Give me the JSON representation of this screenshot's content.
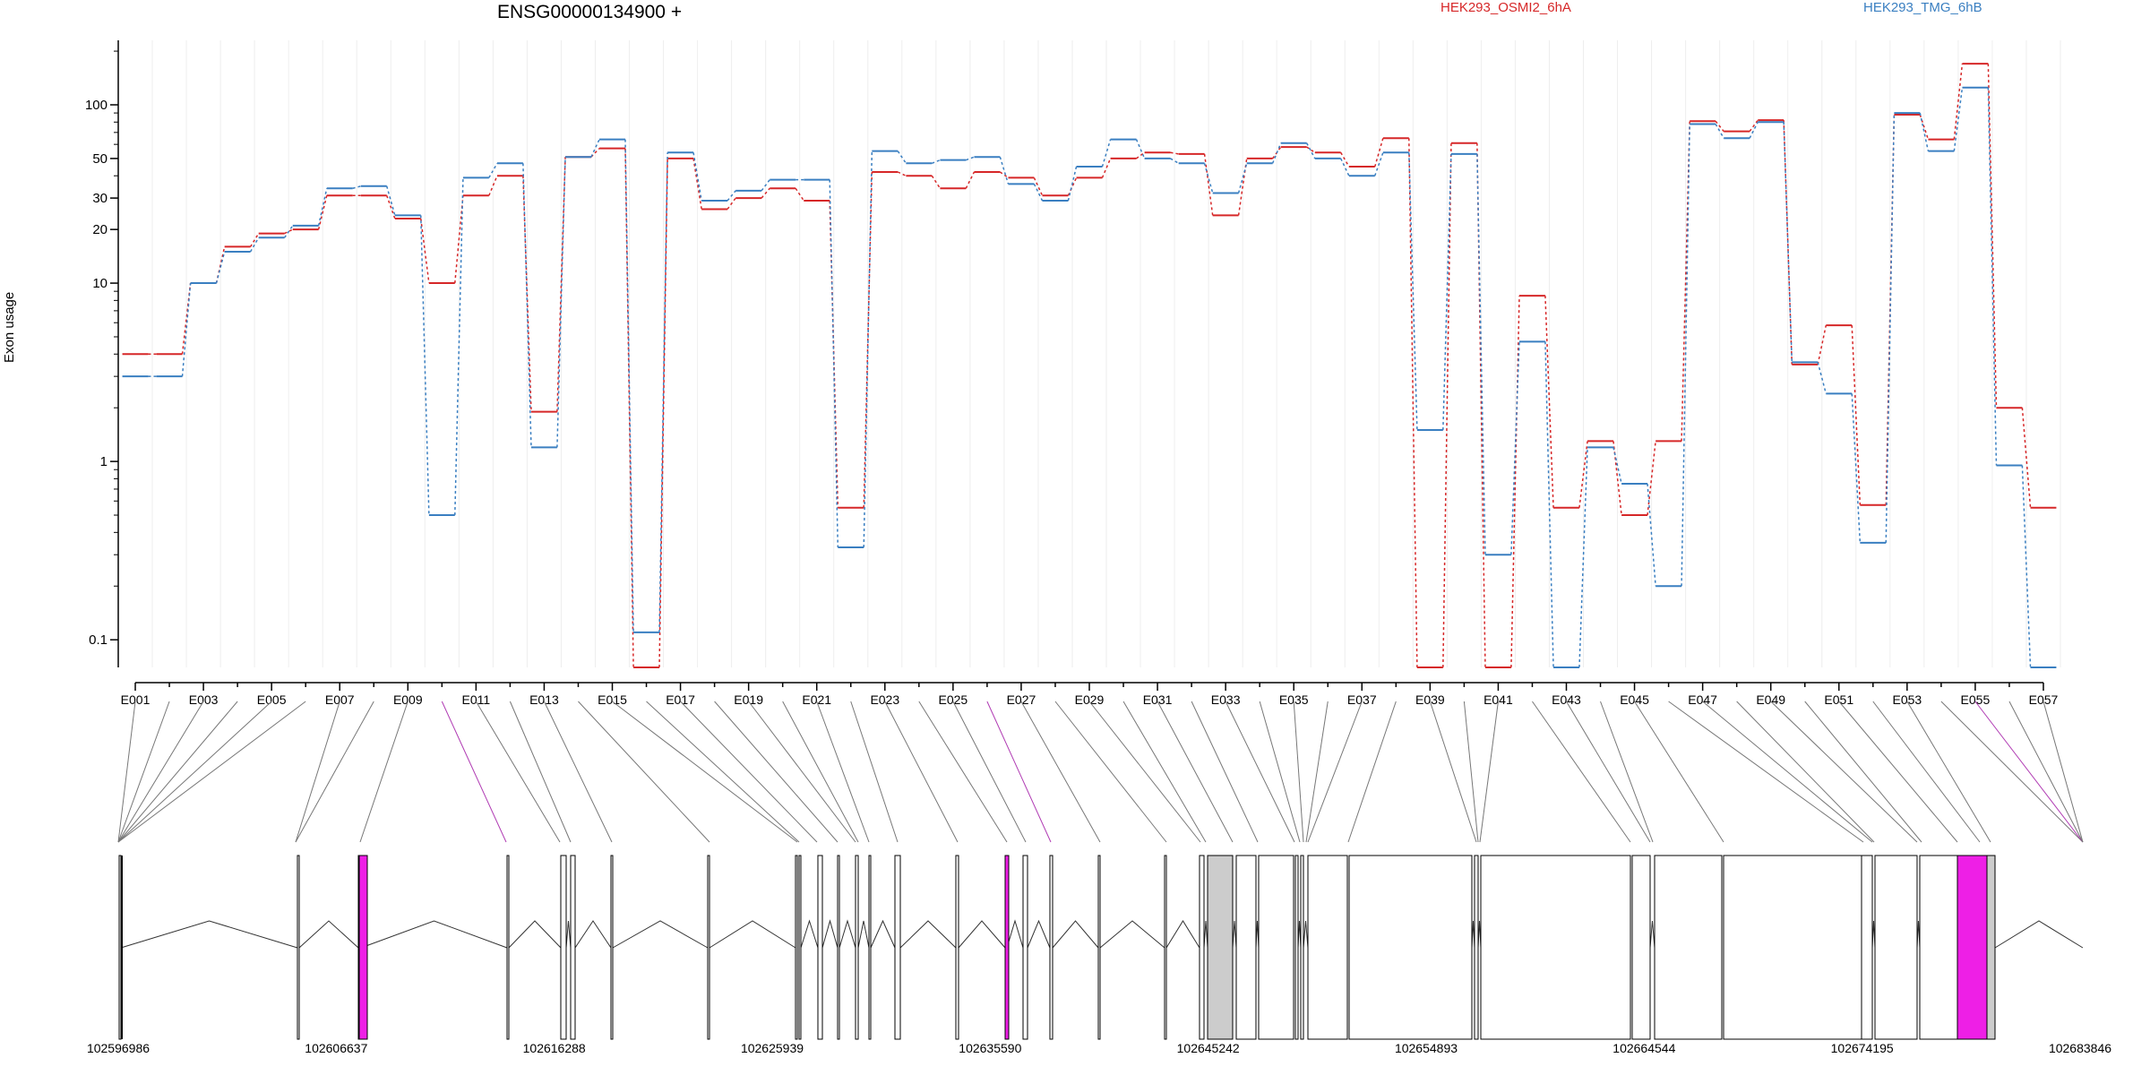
{
  "chart_data": {
    "type": "line",
    "title": "ENSG00000134900 +",
    "ylabel": "Exon usage",
    "yscale": "log",
    "ylim": [
      0.07,
      230
    ],
    "yticks": [
      0.1,
      1,
      10,
      20,
      30,
      50,
      100
    ],
    "yticklabels": [
      "0.1",
      "1",
      "10",
      "20",
      "30",
      "50",
      "100"
    ],
    "grid": "vertical",
    "legend_position": "top",
    "categories": [
      "E001",
      "E002",
      "E003",
      "E004",
      "E005",
      "E006",
      "E007",
      "E008",
      "E009",
      "E010",
      "E011",
      "E012",
      "E013",
      "E014",
      "E015",
      "E016",
      "E017",
      "E018",
      "E019",
      "E020",
      "E021",
      "E022",
      "E023",
      "E024",
      "E025",
      "E026",
      "E027",
      "E028",
      "E029",
      "E030",
      "E031",
      "E032",
      "E033",
      "E034",
      "E035",
      "E036",
      "E037",
      "E038",
      "E039",
      "E040",
      "E041",
      "E042",
      "E043",
      "E044",
      "E045",
      "E046",
      "E047",
      "E048",
      "E049",
      "E050",
      "E051",
      "E052",
      "E053",
      "E054",
      "E055",
      "E056",
      "E057"
    ],
    "xticklabels": [
      "E001",
      "E003",
      "E005",
      "E007",
      "E009",
      "E011",
      "E013",
      "E015",
      "E017",
      "E019",
      "E021",
      "E023",
      "E025",
      "E027",
      "E029",
      "E031",
      "E033",
      "E035",
      "E037",
      "E039",
      "E041",
      "E043",
      "E045",
      "E047",
      "E049",
      "E051",
      "E053",
      "E055",
      "E057"
    ],
    "series": [
      {
        "name": "HEK293_OSMI2_6hA",
        "color": "#d62728",
        "values": [
          4.0,
          4.0,
          10,
          16,
          19,
          20,
          31,
          31,
          23,
          10,
          31,
          40,
          1.9,
          51,
          57,
          0.07,
          50,
          26,
          30,
          34,
          29,
          0.55,
          42,
          40,
          34,
          42,
          39,
          31,
          39,
          50,
          54,
          53,
          24,
          50,
          58,
          54,
          45,
          65,
          0.07,
          61,
          0.07,
          8.5,
          0.55,
          1.3,
          0.5,
          1.3,
          81,
          71,
          82,
          3.5,
          5.8,
          0.57,
          88,
          64,
          170,
          2.0,
          0.55
        ]
      },
      {
        "name": "HEK293_TMG_6hB",
        "color": "#3a7fc1",
        "values": [
          3.0,
          3.0,
          10,
          15,
          18,
          21,
          34,
          35,
          24,
          0.5,
          39,
          47,
          1.2,
          51,
          64,
          0.11,
          54,
          29,
          33,
          38,
          38,
          0.33,
          55,
          47,
          49,
          51,
          36,
          29,
          45,
          64,
          50,
          47,
          32,
          47,
          61,
          50,
          40,
          54,
          1.5,
          53,
          0.3,
          4.7,
          0.07,
          1.2,
          0.75,
          0.2,
          78,
          65,
          80,
          3.6,
          2.4,
          0.35,
          90,
          55,
          125,
          0.95,
          0.07
        ]
      }
    ]
  },
  "gene_model": {
    "coordinate_labels": [
      "102596986",
      "102606637",
      "102616288",
      "102625939",
      "102635590",
      "102645242",
      "102654893",
      "102664544",
      "102674195",
      "102683846"
    ],
    "colors": {
      "highlight": "#ee1fe6",
      "shaded": "#cccccc",
      "outline": "#000000"
    }
  }
}
